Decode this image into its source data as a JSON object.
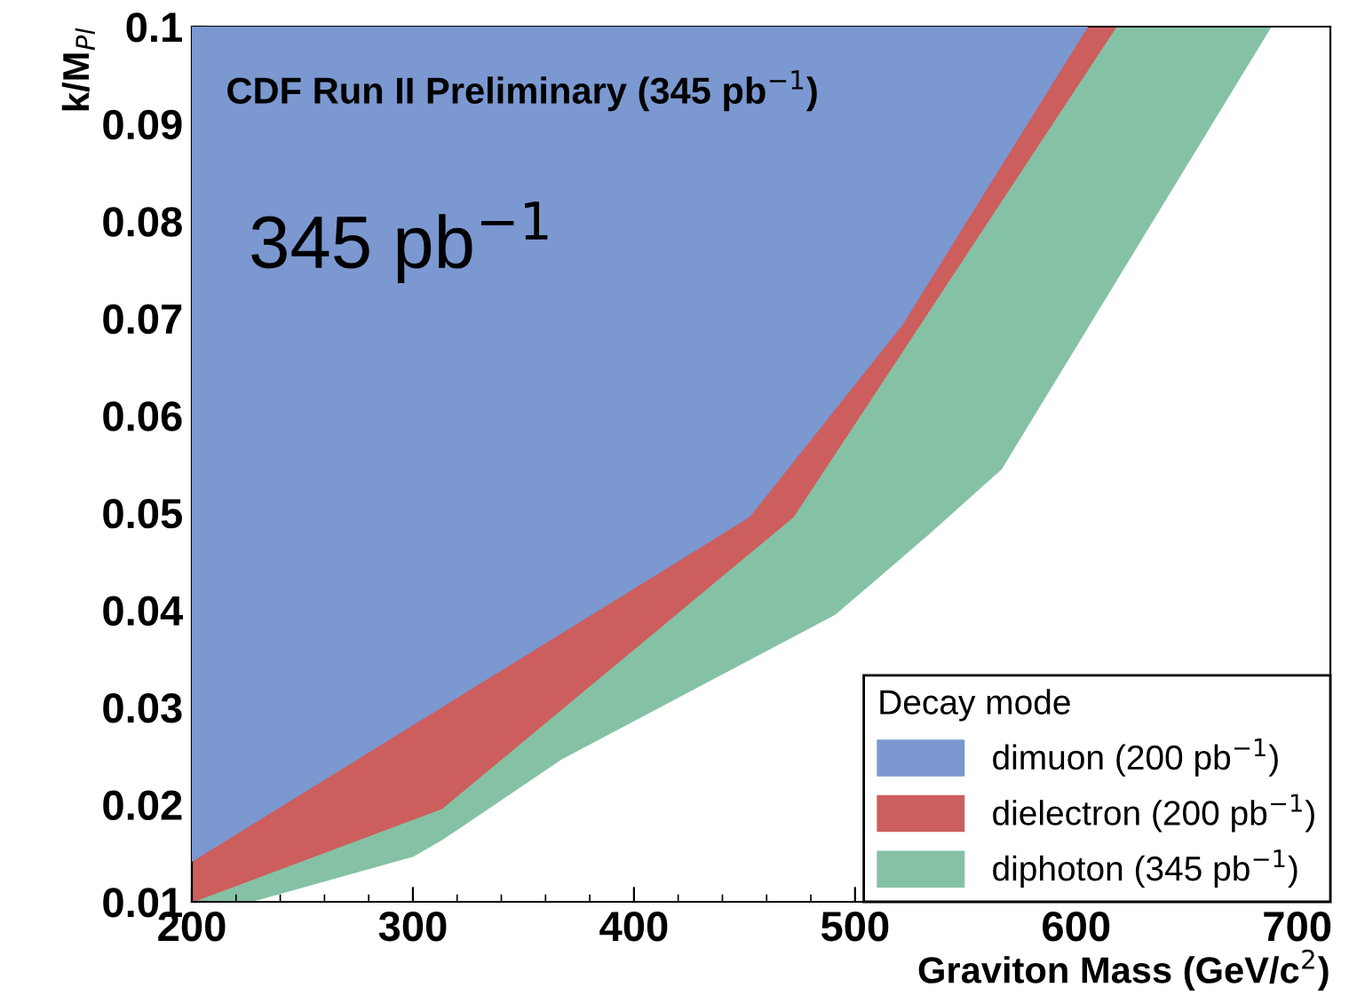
{
  "chart_data": {
    "type": "area",
    "orientation": "horizontal",
    "xlabel": "Graviton Mass (GeV/c$^{2}$)",
    "ylabel": "k/M$_{Pl}$",
    "legend_title": "Decay mode",
    "legend": "bottom right",
    "grid": false,
    "xlim": [
      200,
      715
    ],
    "ylim": [
      0.01,
      0.1
    ],
    "xticks": [
      200,
      300,
      400,
      500,
      600,
      700
    ],
    "yticks": [
      0.01,
      0.02,
      0.03,
      0.04,
      0.05,
      0.06,
      0.07,
      0.08,
      0.09,
      0.1
    ],
    "annotations": [
      "CDF Run II Preliminary (345 pb$^{−1}$)",
      "345 pb$^{−1}$"
    ],
    "series": [
      {
        "name": "diphoton (345 pb$^{−1}$)",
        "color": "#85c2a5",
        "x": [
          0.01,
          0.0147,
          0.0164,
          0.0247,
          0.0396,
          0.0478,
          0.0545,
          0.1
        ],
        "values": [
          226,
          300,
          313,
          367,
          491,
          533,
          566,
          688
        ]
      },
      {
        "name": "dielectron (200 pb$^{−1}$)",
        "color": "#cd5e5e",
        "x": [
          0.01,
          0.0196,
          0.0496,
          0.1
        ],
        "values": [
          200,
          313,
          472,
          618
        ]
      },
      {
        "name": "dimuon (200 pb$^{−1}$)",
        "color": "#7b98d0",
        "x": [
          0.0142,
          0.0496,
          0.0693,
          0.1
        ],
        "values": [
          200,
          452,
          521,
          605
        ]
      }
    ]
  }
}
